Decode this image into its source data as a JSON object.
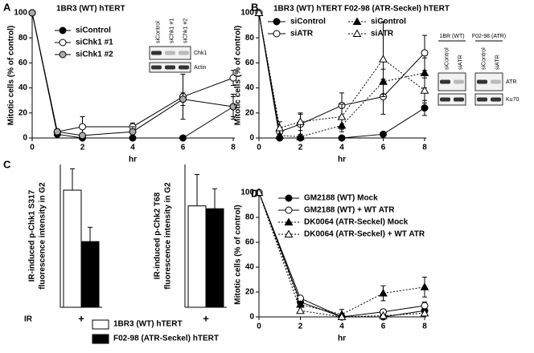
{
  "chart_data": [
    {
      "type": "line",
      "label": "A",
      "title": "1BR3 (WT) hTERT",
      "xlabel": "hr",
      "ylabel": "Mitotic cells (% of control)",
      "x": [
        0,
        1,
        2,
        4,
        6,
        8
      ],
      "xlim": [
        0,
        8
      ],
      "xticks": [
        0,
        2,
        4,
        6,
        8
      ],
      "ylim": [
        0,
        100
      ],
      "yticks": [
        0,
        20,
        40,
        60,
        80,
        100
      ],
      "series": [
        {
          "name": "siControl",
          "color": "#000000",
          "marker": "circle",
          "linestyle": "solid",
          "values": [
            100,
            3,
            0,
            0,
            0,
            25
          ],
          "errors": [
            null,
            null,
            null,
            null,
            null,
            10
          ]
        },
        {
          "name": "siChk1 #1",
          "color": "#ffffff",
          "marker": "circle",
          "linestyle": "solid",
          "values": [
            100,
            5,
            9,
            9,
            33,
            48
          ],
          "errors": [
            null,
            null,
            8,
            3,
            18,
            6
          ]
        },
        {
          "name": "siChk1 #2",
          "color": "#aaaaaa",
          "marker": "circle",
          "linestyle": "solid",
          "values": [
            100,
            5,
            2,
            5,
            31,
            25
          ],
          "errors": [
            null,
            null,
            null,
            4,
            5,
            8
          ]
        }
      ],
      "blot": {
        "lanes": [
          "siControl",
          "siChk1 #1",
          "siChk1 #2"
        ],
        "bands": [
          "Chk1",
          "Actin"
        ]
      }
    },
    {
      "type": "line",
      "label": "B",
      "group_titles": [
        "1BR3 (WT) hTERT",
        "F02-98 (ATR-Seckel) hTERT"
      ],
      "xlabel": "hr",
      "ylabel": "Mitotic cells (% of control)",
      "x": [
        0,
        1,
        2,
        4,
        6,
        8
      ],
      "xlim": [
        0,
        8
      ],
      "xticks": [
        0,
        2,
        4,
        6,
        8
      ],
      "ylim": [
        0,
        100
      ],
      "yticks": [
        0,
        20,
        40,
        60,
        80,
        100
      ],
      "series": [
        {
          "name": "siControl",
          "color": "#000000",
          "marker": "circle",
          "linestyle": "solid",
          "values": [
            100,
            0,
            0,
            0,
            3,
            24
          ],
          "errors": [
            null,
            null,
            null,
            null,
            null,
            6
          ]
        },
        {
          "name": "siATR",
          "color": "#ffffff",
          "marker": "circle",
          "linestyle": "solid",
          "values": [
            100,
            5,
            11,
            26,
            33,
            68
          ],
          "errors": [
            null,
            null,
            8,
            10,
            14,
            14
          ]
        },
        {
          "name": "siControl",
          "color": "#000000",
          "marker": "triangle",
          "linestyle": "dotted",
          "values": [
            100,
            2,
            1,
            10,
            45,
            52
          ],
          "errors": [
            null,
            null,
            null,
            5,
            10,
            12
          ]
        },
        {
          "name": "siATR",
          "color": "#ffffff",
          "marker": "triangle",
          "linestyle": "dotted",
          "values": [
            100,
            8,
            13,
            17,
            63,
            38
          ],
          "errors": [
            null,
            5,
            7,
            10,
            30,
            10
          ]
        }
      ],
      "blot": {
        "groups": [
          "1BR (WT)",
          "F02-98 (ATR)"
        ],
        "lanes": [
          "siControl",
          "siATR",
          "siControl",
          "siATR"
        ],
        "bands": [
          "ATR",
          "Ku70"
        ]
      }
    },
    {
      "type": "bar",
      "label": "C",
      "xlabel": "IR",
      "ylabel": [
        "IR-induced p-Chk1 S317",
        "fluorescence intensity in G2"
      ],
      "categories": [
        "+"
      ],
      "ylim": [
        0,
        1
      ],
      "series": [
        {
          "name": "1BR3 (WT) hTERT",
          "color": "#ffffff",
          "values": [
            0.82
          ],
          "errors": [
            0.15
          ]
        },
        {
          "name": "F02-98 (ATR-Seckel) hTERT",
          "color": "#000000",
          "values": [
            0.46
          ],
          "errors": [
            0.1
          ]
        }
      ]
    },
    {
      "type": "bar",
      "ylabel": [
        "IR-induced p-Chk2 T68",
        "fluorescence intensity in G2"
      ],
      "categories": [
        "+"
      ],
      "ylim": [
        0,
        1
      ],
      "series": [
        {
          "color": "#ffffff",
          "values": [
            0.71
          ],
          "errors": [
            0.22
          ]
        },
        {
          "color": "#000000",
          "values": [
            0.69
          ],
          "errors": [
            0.14
          ]
        }
      ]
    },
    {
      "type": "line",
      "label": "D",
      "xlabel": "hr",
      "ylabel": "Mitotic cells (% of control)",
      "x": [
        0,
        2,
        4,
        6,
        8
      ],
      "xlim": [
        0,
        8
      ],
      "xticks": [
        0,
        2,
        4,
        6,
        8
      ],
      "ylim": [
        0,
        100
      ],
      "yticks": [
        0,
        20,
        40,
        60,
        80,
        100
      ],
      "series": [
        {
          "name": "GM2188 (WT) Mock",
          "color": "#000000",
          "marker": "circle",
          "linestyle": "solid",
          "values": [
            100,
            12,
            0,
            0,
            5
          ],
          "errors": [
            null,
            3,
            null,
            null,
            3
          ]
        },
        {
          "name": "GM2188 (WT) + WT ATR",
          "color": "#ffffff",
          "marker": "circle",
          "linestyle": "solid",
          "values": [
            100,
            15,
            0,
            4,
            9
          ],
          "errors": [
            null,
            null,
            null,
            2,
            3
          ]
        },
        {
          "name": "DK0064 (ATR-Seckel) Mock",
          "color": "#000000",
          "marker": "triangle",
          "linestyle": "dotted",
          "values": [
            100,
            10,
            2,
            19,
            24
          ],
          "errors": [
            null,
            null,
            4,
            6,
            8
          ]
        },
        {
          "name": "DK0064 (ATR-Seckel) + WT ATR",
          "color": "#ffffff",
          "marker": "triangle",
          "linestyle": "dotted",
          "values": [
            100,
            5,
            0,
            1,
            3
          ],
          "errors": [
            null,
            null,
            null,
            null,
            null
          ]
        }
      ]
    }
  ]
}
